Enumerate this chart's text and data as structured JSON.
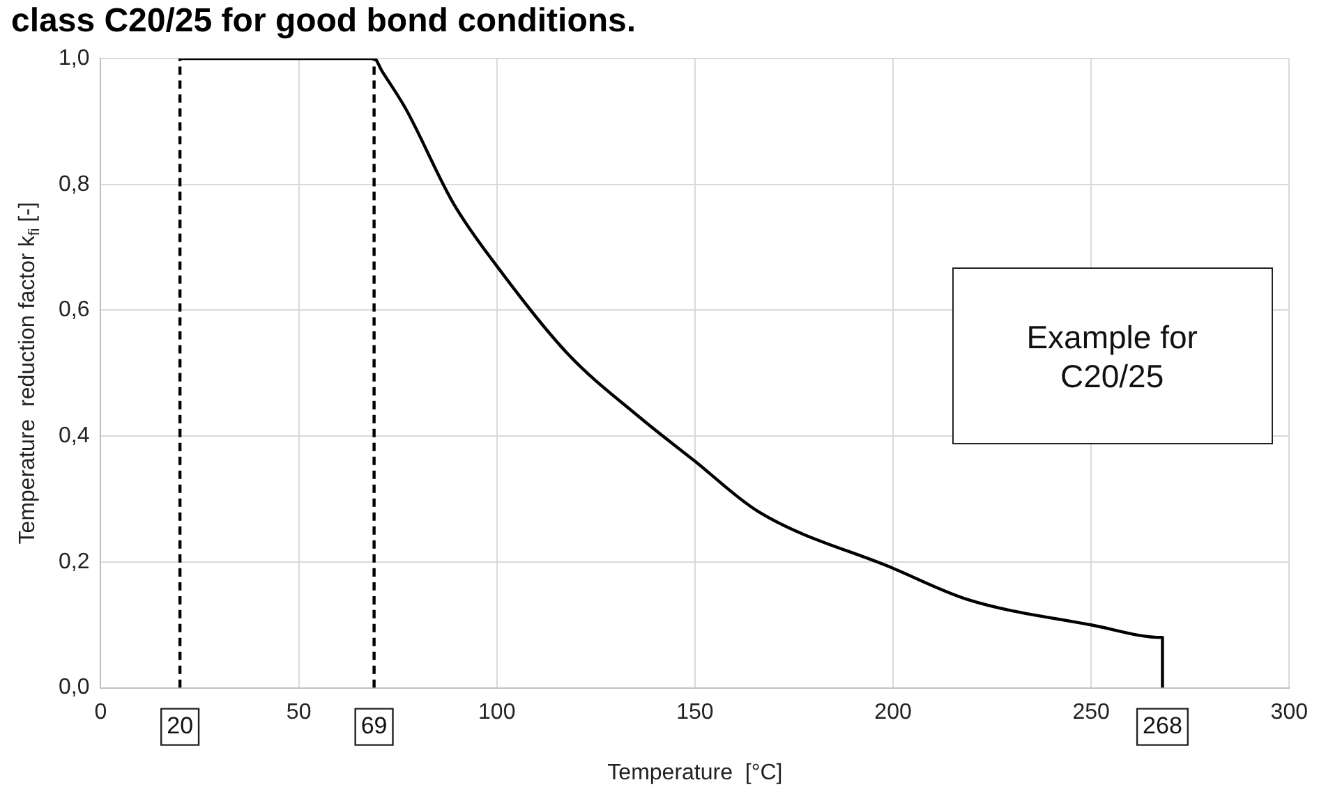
{
  "chart_data": {
    "type": "line",
    "title": "class C20/25 for good bond conditions.",
    "xlabel": "Temperature  [°C]",
    "ylabel": "Temperature  reduction factor k$_{fi}$ [-]",
    "series": [
      {
        "color": "#000000",
        "line_style": "solid",
        "x": [
          20,
          69,
          71,
          77,
          89,
          100,
          118,
          136,
          150,
          166,
          200,
          219,
          250,
          268,
          268
        ],
        "values": [
          1.0,
          1.0,
          0.98,
          0.92,
          0.77,
          0.67,
          0.53,
          0.43,
          0.36,
          0.28,
          0.19,
          0.14,
          0.1,
          0.08,
          0.0
        ]
      },
      {
        "color": "#000000",
        "line_style": "dashed",
        "x": [
          20,
          20
        ],
        "values": [
          0.0,
          1.0
        ]
      },
      {
        "color": "#000000",
        "line_style": "dashed",
        "x": [
          69,
          69
        ],
        "values": [
          0.0,
          1.0
        ]
      }
    ],
    "xlim": [
      0,
      300
    ],
    "xticks": [
      0,
      50,
      100,
      150,
      200,
      250,
      300
    ],
    "ylim": [
      0,
      1.0
    ],
    "yticks": [
      {
        "value": 0,
        "label": "0,0"
      },
      {
        "value": 0.2,
        "label": "0,2"
      },
      {
        "value": 0.4,
        "label": "0,4"
      },
      {
        "value": 0.6,
        "label": "0,6"
      },
      {
        "value": 0.8,
        "label": "0,8"
      },
      {
        "value": 1.0,
        "label": "1,0"
      }
    ],
    "annotations": [
      {
        "text": "20",
        "x": 20,
        "y": 0
      },
      {
        "text": "69",
        "x": 69,
        "y": 0
      },
      {
        "text": "268",
        "x": 268,
        "y": 0
      },
      "Example for C20/25"
    ],
    "grid": true,
    "legend": false,
    "marker": "none"
  }
}
